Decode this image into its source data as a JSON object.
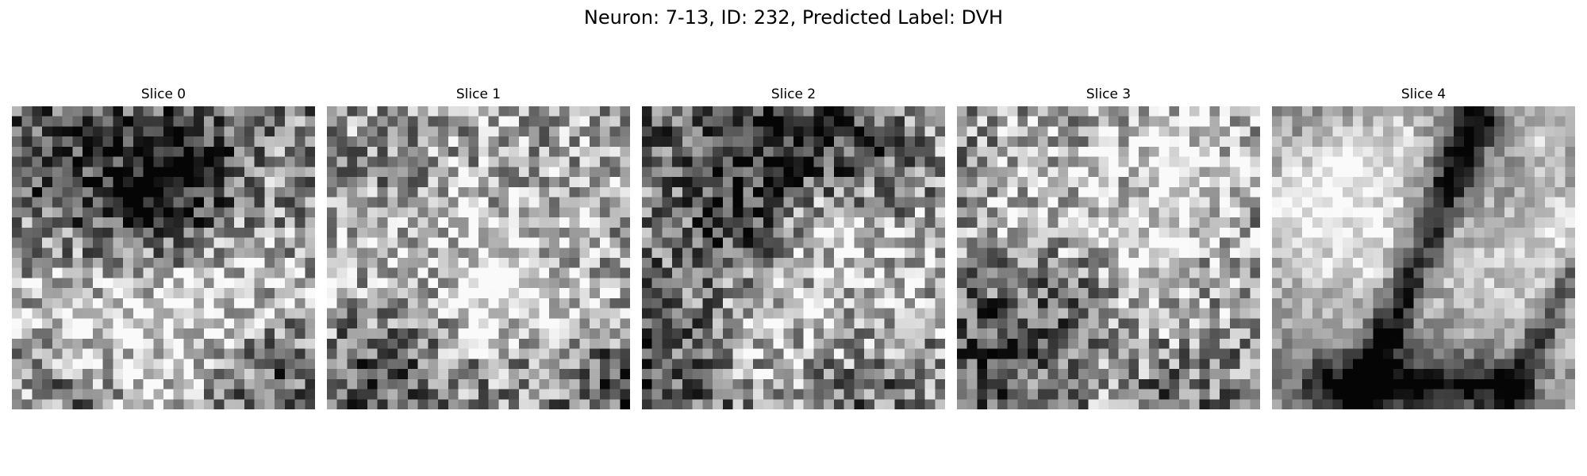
{
  "figure": {
    "title": "Neuron: 7-13, ID: 232, Predicted Label: DVH",
    "colormap": "gray",
    "grid_size": 30,
    "panels": [
      {
        "title": "Slice 0",
        "seed": 101
      },
      {
        "title": "Slice 1",
        "seed": 202
      },
      {
        "title": "Slice 2",
        "seed": 303
      },
      {
        "title": "Slice 3",
        "seed": 404
      },
      {
        "title": "Slice 4",
        "seed": 505
      }
    ]
  }
}
